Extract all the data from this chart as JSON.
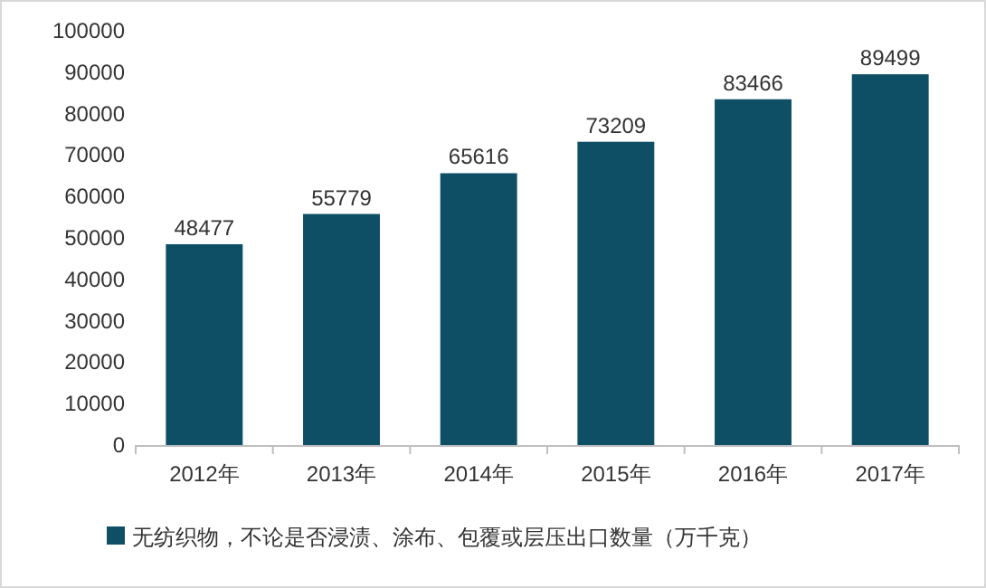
{
  "chart_data": {
    "type": "bar",
    "categories": [
      "2012年",
      "2013年",
      "2014年",
      "2015年",
      "2016年",
      "2017年"
    ],
    "series": [
      {
        "name": "无纺织物，不论是否浸渍、涂布、包覆或层压出口数量（万千克）",
        "color": "#0e4f66",
        "values": [
          48477,
          55779,
          65616,
          73209,
          83466,
          89499
        ]
      }
    ],
    "ylim": [
      0,
      100000
    ],
    "yticks": [
      0,
      10000,
      20000,
      30000,
      40000,
      50000,
      60000,
      70000,
      80000,
      90000,
      100000
    ],
    "data_labels": true,
    "grid": false,
    "legend": "bottom"
  }
}
